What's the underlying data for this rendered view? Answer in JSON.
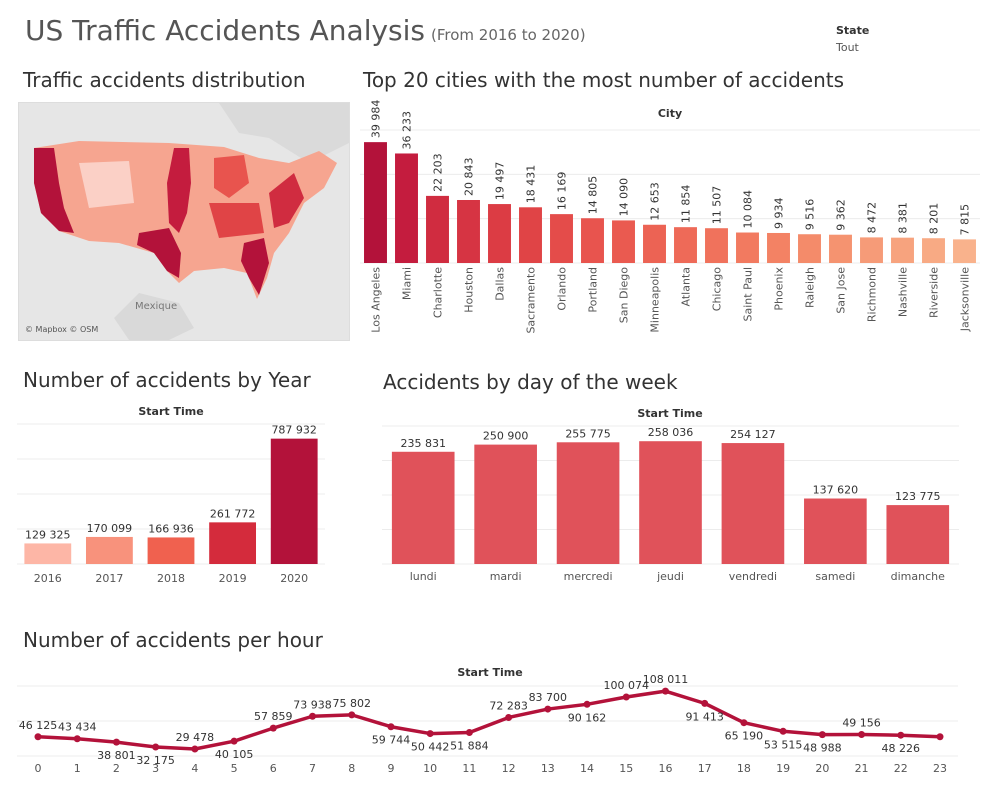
{
  "header": {
    "title": "US Traffic Accidents Analysis",
    "subtitle": "(From 2016 to 2020)",
    "filter_label": "State",
    "filter_value": "Tout"
  },
  "map": {
    "title": "Traffic accidents distribution",
    "label_mexico": "Mexique",
    "attribution": "© Mapbox © OSM"
  },
  "chart_data": [
    {
      "type": "bar",
      "title": "Top 20 cities with the most number of accidents",
      "header": "City",
      "categories": [
        "Los Angeles",
        "Miami",
        "Charlotte",
        "Houston",
        "Dallas",
        "Sacramento",
        "Orlando",
        "Portland",
        "San Diego",
        "Minneapolis",
        "Atlanta",
        "Chicago",
        "Saint Paul",
        "Phoenix",
        "Raleigh",
        "San Jose",
        "Richmond",
        "Nashville",
        "Riverside",
        "Jacksonville"
      ],
      "values": [
        39984,
        36233,
        22203,
        20843,
        19497,
        18431,
        16169,
        14805,
        14090,
        12653,
        11854,
        11507,
        10084,
        9934,
        9516,
        9362,
        8472,
        8381,
        8201,
        7815
      ],
      "labels": [
        "39 984",
        "36 233",
        "22 203",
        "20 843",
        "19 497",
        "18 431",
        "16 169",
        "14 805",
        "14 090",
        "12 653",
        "11 854",
        "11 507",
        "10 084",
        "9 934",
        "9 516",
        "9 362",
        "8 472",
        "8 381",
        "8 201",
        "7 815"
      ],
      "colors": [
        "#b3123a",
        "#c41c3e",
        "#d02c40",
        "#d63443",
        "#dc3c44",
        "#e04446",
        "#e44c4a",
        "#e8544e",
        "#ea5a50",
        "#ec6354",
        "#ee6a58",
        "#f0725c",
        "#f27a60",
        "#f38264",
        "#f48b6a",
        "#f59370",
        "#f69b78",
        "#f7a37e",
        "#f8aa84",
        "#f9b28c"
      ],
      "ylim": [
        0,
        44000
      ]
    },
    {
      "type": "bar",
      "title": "Number of accidents by Year",
      "header": "Start Time",
      "categories": [
        "2016",
        "2017",
        "2018",
        "2019",
        "2020"
      ],
      "values": [
        129325,
        170099,
        166936,
        261772,
        787932
      ],
      "labels": [
        "129 325",
        "170 099",
        "166 936",
        "261 772",
        "787 932"
      ],
      "colors": [
        "#fdb6a6",
        "#f8927c",
        "#f0614f",
        "#d42b3c",
        "#b3123a"
      ],
      "ylim": [
        0,
        880000
      ]
    },
    {
      "type": "bar",
      "title": "Accidents by day of the week",
      "header": "Start Time",
      "categories": [
        "lundi",
        "mardi",
        "mercredi",
        "jeudi",
        "vendredi",
        "samedi",
        "dimanche"
      ],
      "values": [
        235831,
        250900,
        255775,
        258036,
        254127,
        137620,
        123775
      ],
      "labels": [
        "235 831",
        "250 900",
        "255 775",
        "258 036",
        "254 127",
        "137 620",
        "123 775"
      ],
      "colors": [
        "#e0525a"
      ],
      "ylim": [
        0,
        290000
      ]
    },
    {
      "type": "line",
      "title": "Number of accidents per hour",
      "header": "Start Time",
      "x": [
        0,
        1,
        2,
        3,
        4,
        5,
        6,
        7,
        8,
        9,
        10,
        11,
        12,
        13,
        14,
        15,
        16,
        17,
        18,
        19,
        20,
        21,
        22,
        23
      ],
      "values": [
        46125,
        43434,
        38801,
        32175,
        29478,
        40105,
        57859,
        73938,
        75802,
        59744,
        50442,
        51884,
        72283,
        83700,
        90162,
        100074,
        108011,
        91413,
        65190,
        53515,
        48988,
        49156,
        48226,
        46125
      ],
      "labels": [
        "46 125",
        "43 434",
        "38 801",
        "32 175",
        "29 478",
        "40 105",
        "57 859",
        "73 938",
        "75 802",
        "59 744",
        "50 442",
        "51 884",
        "72 283",
        "83 700",
        "90 162",
        "100 074",
        "108 011",
        "91 413",
        "65 190",
        "53 515",
        "48 988",
        "49 156",
        "48 226",
        ""
      ],
      "colors": [
        "#b3123a"
      ],
      "ylim": [
        20000,
        115000
      ]
    }
  ]
}
